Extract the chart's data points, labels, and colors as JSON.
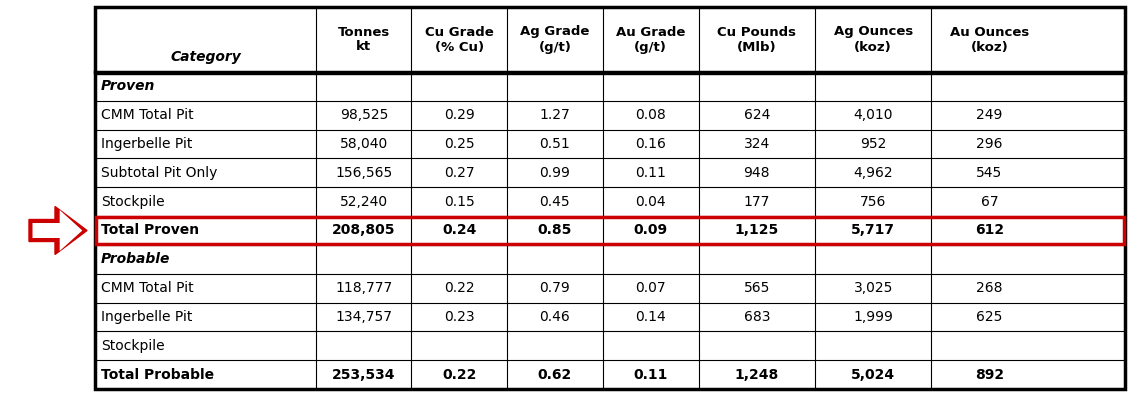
{
  "columns": [
    "Category",
    "Tonnes\nkt",
    "Cu Grade\n(% Cu)",
    "Ag Grade\n(g/t)",
    "Au Grade\n(g/t)",
    "Cu Pounds\n(Mlb)",
    "Ag Ounces\n(koz)",
    "Au Ounces\n(koz)"
  ],
  "rows": [
    {
      "label": "Proven",
      "italic": true,
      "bold": true,
      "is_section": true,
      "data": [
        "",
        "",
        "",
        "",
        "",
        "",
        ""
      ]
    },
    {
      "label": "CMM Total Pit",
      "italic": false,
      "bold": false,
      "is_section": false,
      "data": [
        "98,525",
        "0.29",
        "1.27",
        "0.08",
        "624",
        "4,010",
        "249"
      ]
    },
    {
      "label": "Ingerbelle Pit",
      "italic": false,
      "bold": false,
      "is_section": false,
      "data": [
        "58,040",
        "0.25",
        "0.51",
        "0.16",
        "324",
        "952",
        "296"
      ]
    },
    {
      "label": "Subtotal Pit Only",
      "italic": false,
      "bold": false,
      "is_section": false,
      "data": [
        "156,565",
        "0.27",
        "0.99",
        "0.11",
        "948",
        "4,962",
        "545"
      ]
    },
    {
      "label": "Stockpile",
      "italic": false,
      "bold": false,
      "is_section": false,
      "data": [
        "52,240",
        "0.15",
        "0.45",
        "0.04",
        "177",
        "756",
        "67"
      ]
    },
    {
      "label": "Total Proven",
      "italic": false,
      "bold": true,
      "is_section": false,
      "highlighted": true,
      "data": [
        "208,805",
        "0.24",
        "0.85",
        "0.09",
        "1,125",
        "5,717",
        "612"
      ]
    },
    {
      "label": "Probable",
      "italic": true,
      "bold": true,
      "is_section": true,
      "data": [
        "",
        "",
        "",
        "",
        "",
        "",
        ""
      ]
    },
    {
      "label": "CMM Total Pit",
      "italic": false,
      "bold": false,
      "is_section": false,
      "data": [
        "118,777",
        "0.22",
        "0.79",
        "0.07",
        "565",
        "3,025",
        "268"
      ]
    },
    {
      "label": "Ingerbelle Pit",
      "italic": false,
      "bold": false,
      "is_section": false,
      "data": [
        "134,757",
        "0.23",
        "0.46",
        "0.14",
        "683",
        "1,999",
        "625"
      ]
    },
    {
      "label": "Stockpile",
      "italic": false,
      "bold": false,
      "is_section": false,
      "data": [
        "",
        "",
        "",
        "",
        "",
        "",
        ""
      ]
    },
    {
      "label": "Total Probable",
      "italic": false,
      "bold": true,
      "is_section": false,
      "data": [
        "253,534",
        "0.22",
        "0.62",
        "0.11",
        "1,248",
        "5,024",
        "892"
      ]
    }
  ],
  "highlight_row_index": 5,
  "highlight_box_color": "#cc0000",
  "arrow_color": "#cc0000"
}
